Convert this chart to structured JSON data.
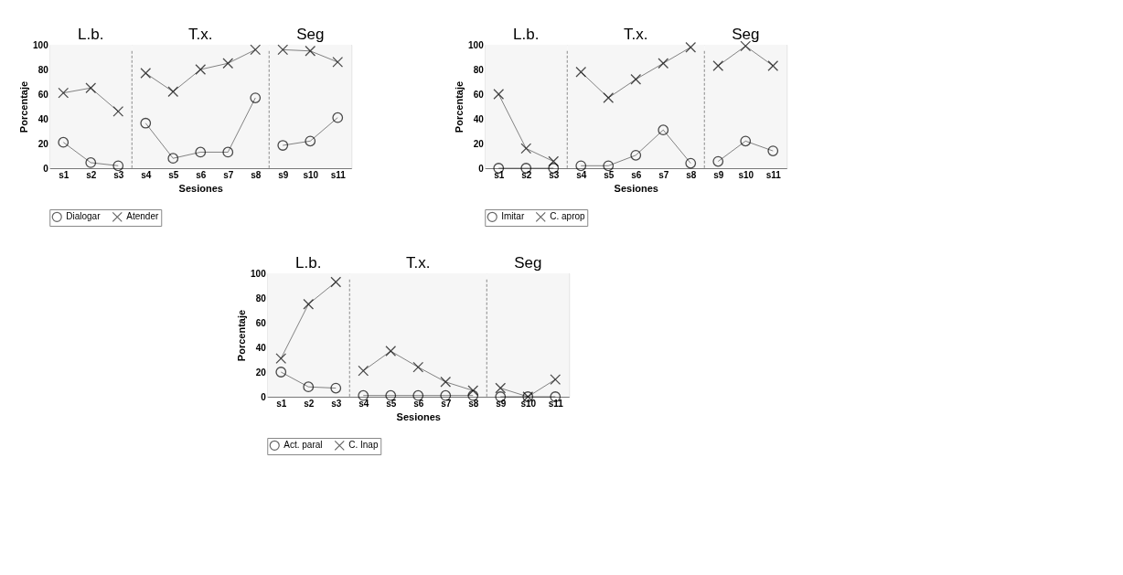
{
  "chart_data": [
    {
      "type": "line",
      "categories": [
        "s1",
        "s2",
        "s3",
        "s4",
        "s5",
        "s6",
        "s7",
        "s8",
        "s9",
        "s10",
        "s11"
      ],
      "xlabel": "Sesiones",
      "ylabel": "Porcentaje",
      "ylim": [
        0,
        100
      ],
      "yticks": [
        0,
        20,
        40,
        60,
        80,
        100
      ],
      "legend": "bottom",
      "line_style": "solid",
      "bands": [
        {
          "axis": "x",
          "from": "s1",
          "to": "s3",
          "label": "L.b.",
          "color": "#f6f6f6"
        },
        {
          "axis": "x",
          "from": "s4",
          "to": "s8",
          "label": "T.x.",
          "color": "#f6f6f6"
        },
        {
          "axis": "x",
          "from": "s9",
          "to": "s11",
          "label": "Seg",
          "color": "#f6f6f6"
        }
      ],
      "series": [
        {
          "name": "Dialogar",
          "color": "#000000",
          "marker": "circle",
          "values": [
            21,
            4.5,
            2,
            36.5,
            8,
            13,
            13,
            57,
            18.5,
            22,
            41
          ]
        },
        {
          "name": "Atender",
          "color": "#000000",
          "marker": "cross",
          "values": [
            61,
            65,
            46,
            77,
            62,
            80,
            85,
            96,
            96,
            95,
            86
          ]
        }
      ]
    },
    {
      "type": "line",
      "categories": [
        "s1",
        "s2",
        "s3",
        "s4",
        "s5",
        "s6",
        "s7",
        "s8",
        "s9",
        "s10",
        "s11"
      ],
      "xlabel": "Sesiones",
      "ylabel": "Porcentaje",
      "ylim": [
        0,
        100
      ],
      "yticks": [
        0,
        20,
        40,
        60,
        80,
        100
      ],
      "legend": "bottom",
      "line_style": "solid",
      "bands": [
        {
          "axis": "x",
          "from": "s1",
          "to": "s3",
          "label": "L.b.",
          "color": "#f6f6f6"
        },
        {
          "axis": "x",
          "from": "s4",
          "to": "s8",
          "label": "T.x.",
          "color": "#f6f6f6"
        },
        {
          "axis": "x",
          "from": "s9",
          "to": "s11",
          "label": "Seg",
          "color": "#f6f6f6"
        }
      ],
      "series": [
        {
          "name": "Imitar",
          "color": "#000000",
          "marker": "circle",
          "values": [
            0,
            0,
            0,
            2,
            2,
            10.5,
            31,
            4,
            5.5,
            22,
            14
          ]
        },
        {
          "name": "C. aprop",
          "color": "#000000",
          "marker": "cross",
          "values": [
            60,
            16,
            5.5,
            78,
            57,
            72,
            85,
            98,
            83,
            99,
            83
          ]
        }
      ]
    },
    {
      "type": "line",
      "categories": [
        "s1",
        "s2",
        "s3",
        "s4",
        "s5",
        "s6",
        "s7",
        "s8",
        "s9",
        "s10",
        "s11"
      ],
      "xlabel": "Sesiones",
      "ylabel": "Porcentaje",
      "ylim": [
        0,
        100
      ],
      "yticks": [
        0,
        20,
        40,
        60,
        80,
        100
      ],
      "legend": "bottom",
      "line_style": "solid",
      "bands": [
        {
          "axis": "x",
          "from": "s1",
          "to": "s3",
          "label": "L.b.",
          "color": "#f6f6f6"
        },
        {
          "axis": "x",
          "from": "s4",
          "to": "s8",
          "label": "T.x.",
          "color": "#f6f6f6"
        },
        {
          "axis": "x",
          "from": "s9",
          "to": "s11",
          "label": "Seg",
          "color": "#f6f6f6"
        }
      ],
      "series": [
        {
          "name": "Act. paral",
          "color": "#000000",
          "marker": "circle",
          "values": [
            20,
            8,
            7,
            1,
            1,
            1,
            1,
            1,
            0,
            0,
            0
          ]
        },
        {
          "name": "C. Inap",
          "color": "#000000",
          "marker": "cross",
          "values": [
            31,
            75,
            93,
            21,
            37,
            24,
            12,
            5,
            7,
            0,
            14
          ]
        }
      ]
    }
  ]
}
